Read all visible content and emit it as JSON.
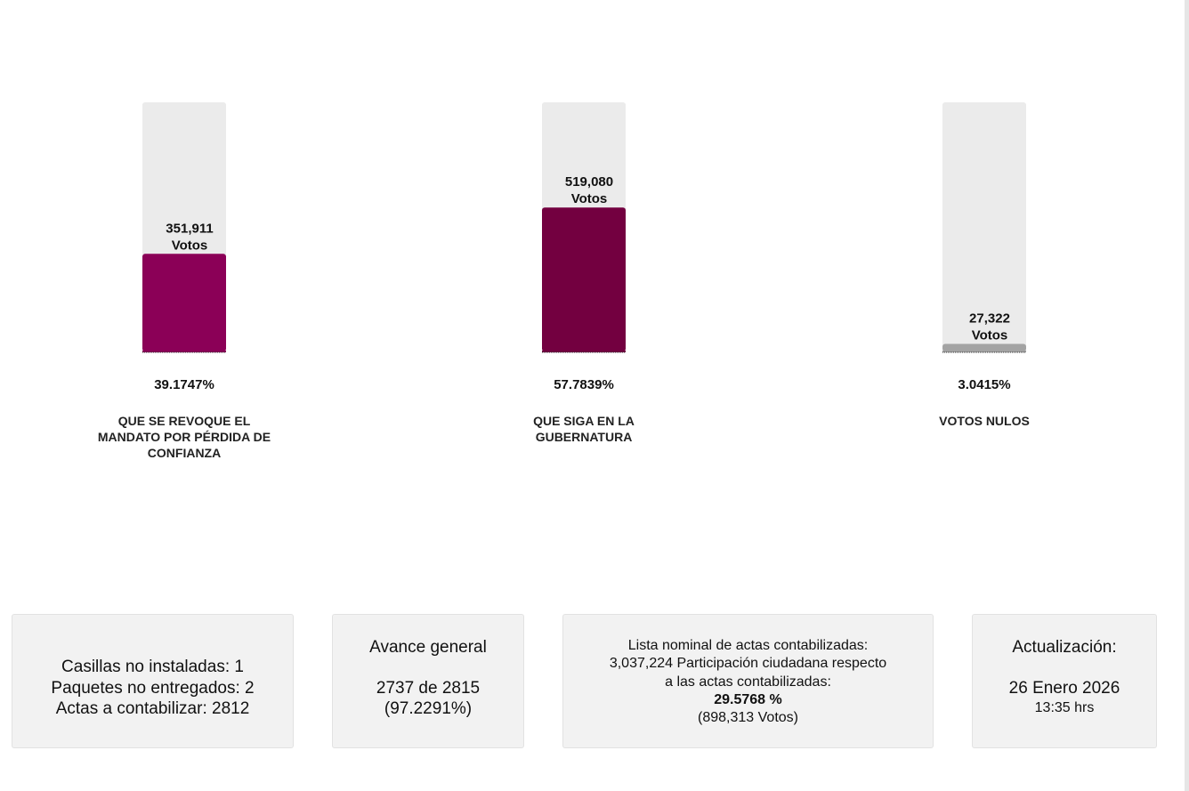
{
  "chart_data": {
    "type": "bar",
    "categories": [
      "QUE SE REVOQUE EL MANDATO POR PÉRDIDA DE CONFIANZA",
      "QUE SIGA EN LA GUBERNATURA",
      "VOTOS NULOS"
    ],
    "values": [
      39.1747,
      57.7839,
      3.0415
    ],
    "value_labels": [
      "39.1747%",
      "57.7839%",
      "3.0415%"
    ],
    "votes": [
      351911,
      519080,
      27322
    ],
    "vote_labels": [
      "351,911",
      "519,080",
      "27,322"
    ],
    "votes_unit": "Votos",
    "colors": [
      "#8b0057",
      "#730040",
      "#a3a3a3"
    ],
    "ylim": [
      0,
      100
    ]
  },
  "panels": [
    {
      "lines": [
        "Casillas no instaladas: 1",
        "Paquetes no entregados: 2",
        "Actas a contabilizar: 2812"
      ]
    },
    {
      "title": "Avance general",
      "lines": [
        "2737 de 2815",
        "(97.2291%)"
      ]
    },
    {
      "lines": [
        "Lista nominal de actas contabilizadas:",
        "3,037,224 Participación ciudadana respecto",
        "a las actas contabilizadas:"
      ],
      "highlight": "29.5768 %",
      "note": "(898,313 Votos)"
    },
    {
      "title": "Actualización:",
      "date": "26 Enero 2026",
      "time": "13:35 hrs"
    }
  ]
}
